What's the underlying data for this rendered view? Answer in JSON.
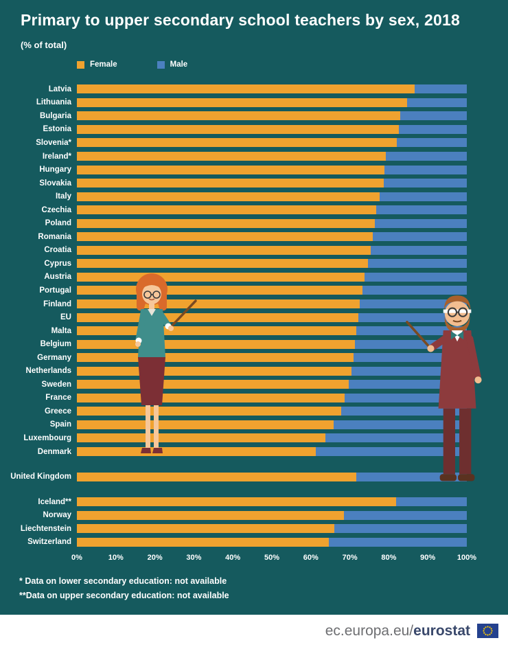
{
  "title": "Primary to upper secondary school teachers by sex, 2018",
  "subtitle": "(% of total)",
  "legend": {
    "female_label": "Female",
    "male_label": "Male"
  },
  "colors": {
    "background": "#155a5e",
    "female": "#f0a22f",
    "male": "#4b80bf",
    "text": "#ffffff",
    "footer_background": "#ffffff",
    "eu_flag_blue": "#24418e",
    "eu_flag_stars": "#ffcc00"
  },
  "chart_data": {
    "type": "bar",
    "orientation": "horizontal",
    "stacked": true,
    "unit": "%",
    "xlim": [
      0,
      100
    ],
    "x_ticks": [
      "0%",
      "10%",
      "20%",
      "30%",
      "40%",
      "50%",
      "60%",
      "70%",
      "80%",
      "90%",
      "100%"
    ],
    "legend_position": "top",
    "grid": false,
    "categories": [
      "Latvia",
      "Lithuania",
      "Bulgaria",
      "Estonia",
      "Slovenia*",
      "Ireland*",
      "Hungary",
      "Slovakia",
      "Italy",
      "Czechia",
      "Poland",
      "Romania",
      "Croatia",
      "Cyprus",
      "Austria",
      "Portugal",
      "Finland",
      "EU",
      "Malta",
      "Belgium",
      "Germany",
      "Netherlands",
      "Sweden",
      "France",
      "Greece",
      "Spain",
      "Luxembourg",
      "Denmark",
      "United Kingdom",
      "Iceland**",
      "Norway",
      "Liechtenstein",
      "Switzerland"
    ],
    "gap_before_indices": [
      28,
      29
    ],
    "series": [
      {
        "name": "Female",
        "color": "#f0a22f",
        "values": [
          86.6,
          84.7,
          83.0,
          82.6,
          82.0,
          79.2,
          78.9,
          78.7,
          77.6,
          76.8,
          76.4,
          75.9,
          75.4,
          74.6,
          73.8,
          73.3,
          72.6,
          72.2,
          71.7,
          71.3,
          70.9,
          70.4,
          69.8,
          68.6,
          67.8,
          65.9,
          63.7,
          61.2,
          71.6,
          81.9,
          68.4,
          66.1,
          64.6
        ]
      },
      {
        "name": "Male",
        "color": "#4b80bf",
        "values": [
          13.4,
          15.3,
          17.0,
          17.4,
          18.0,
          20.8,
          21.1,
          21.3,
          22.4,
          23.2,
          23.6,
          24.1,
          24.6,
          25.4,
          26.2,
          26.7,
          27.4,
          27.8,
          28.3,
          28.7,
          29.1,
          29.6,
          30.2,
          31.4,
          32.2,
          34.1,
          36.3,
          38.8,
          28.4,
          18.1,
          31.6,
          33.9,
          35.4
        ]
      }
    ]
  },
  "footnotes": [
    "* Data on lower secondary education: not available",
    "**Data on upper secondary education: not available"
  ],
  "footer": {
    "url_prefix": "ec.europa.eu/",
    "brand": "eurostat"
  }
}
